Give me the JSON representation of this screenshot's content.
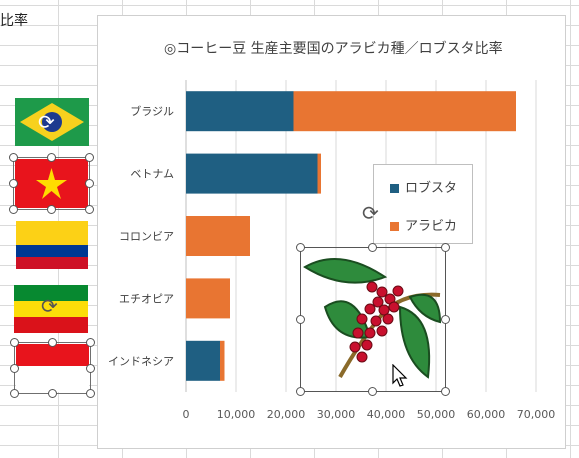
{
  "sheet": {
    "cell_text": "比率"
  },
  "chart": {
    "title": "◎コーヒー豆 生産主要国のアラビカ種／ロブスタ比率",
    "legend": [
      {
        "label": "ロブスタ",
        "color": "#1f5f82"
      },
      {
        "label": "アラビカ",
        "color": "#e87532"
      }
    ]
  },
  "chart_data": {
    "type": "bar",
    "orientation": "horizontal",
    "stacked": true,
    "categories": [
      "ブラジル",
      "ベトナム",
      "コロンビア",
      "エチオピア",
      "インドネシア"
    ],
    "series": [
      {
        "name": "ロブスタ",
        "color": "#1f5f82",
        "values": [
          21500,
          26300,
          0,
          0,
          6800
        ]
      },
      {
        "name": "アラビカ",
        "color": "#e87532",
        "values": [
          44500,
          700,
          12800,
          8800,
          900
        ]
      }
    ],
    "xlim": [
      0,
      70000
    ],
    "xticks": [
      "0",
      "10,000",
      "20,000",
      "30,000",
      "40,000",
      "50,000",
      "60,000",
      "70,000"
    ],
    "grid": true,
    "legend_position": "right"
  },
  "icons": {
    "flags": [
      "brazil-flag",
      "vietnam-flag",
      "colombia-flag",
      "ethiopia-flag",
      "indonesia-flag"
    ],
    "image": "coffee-branch-picture"
  }
}
